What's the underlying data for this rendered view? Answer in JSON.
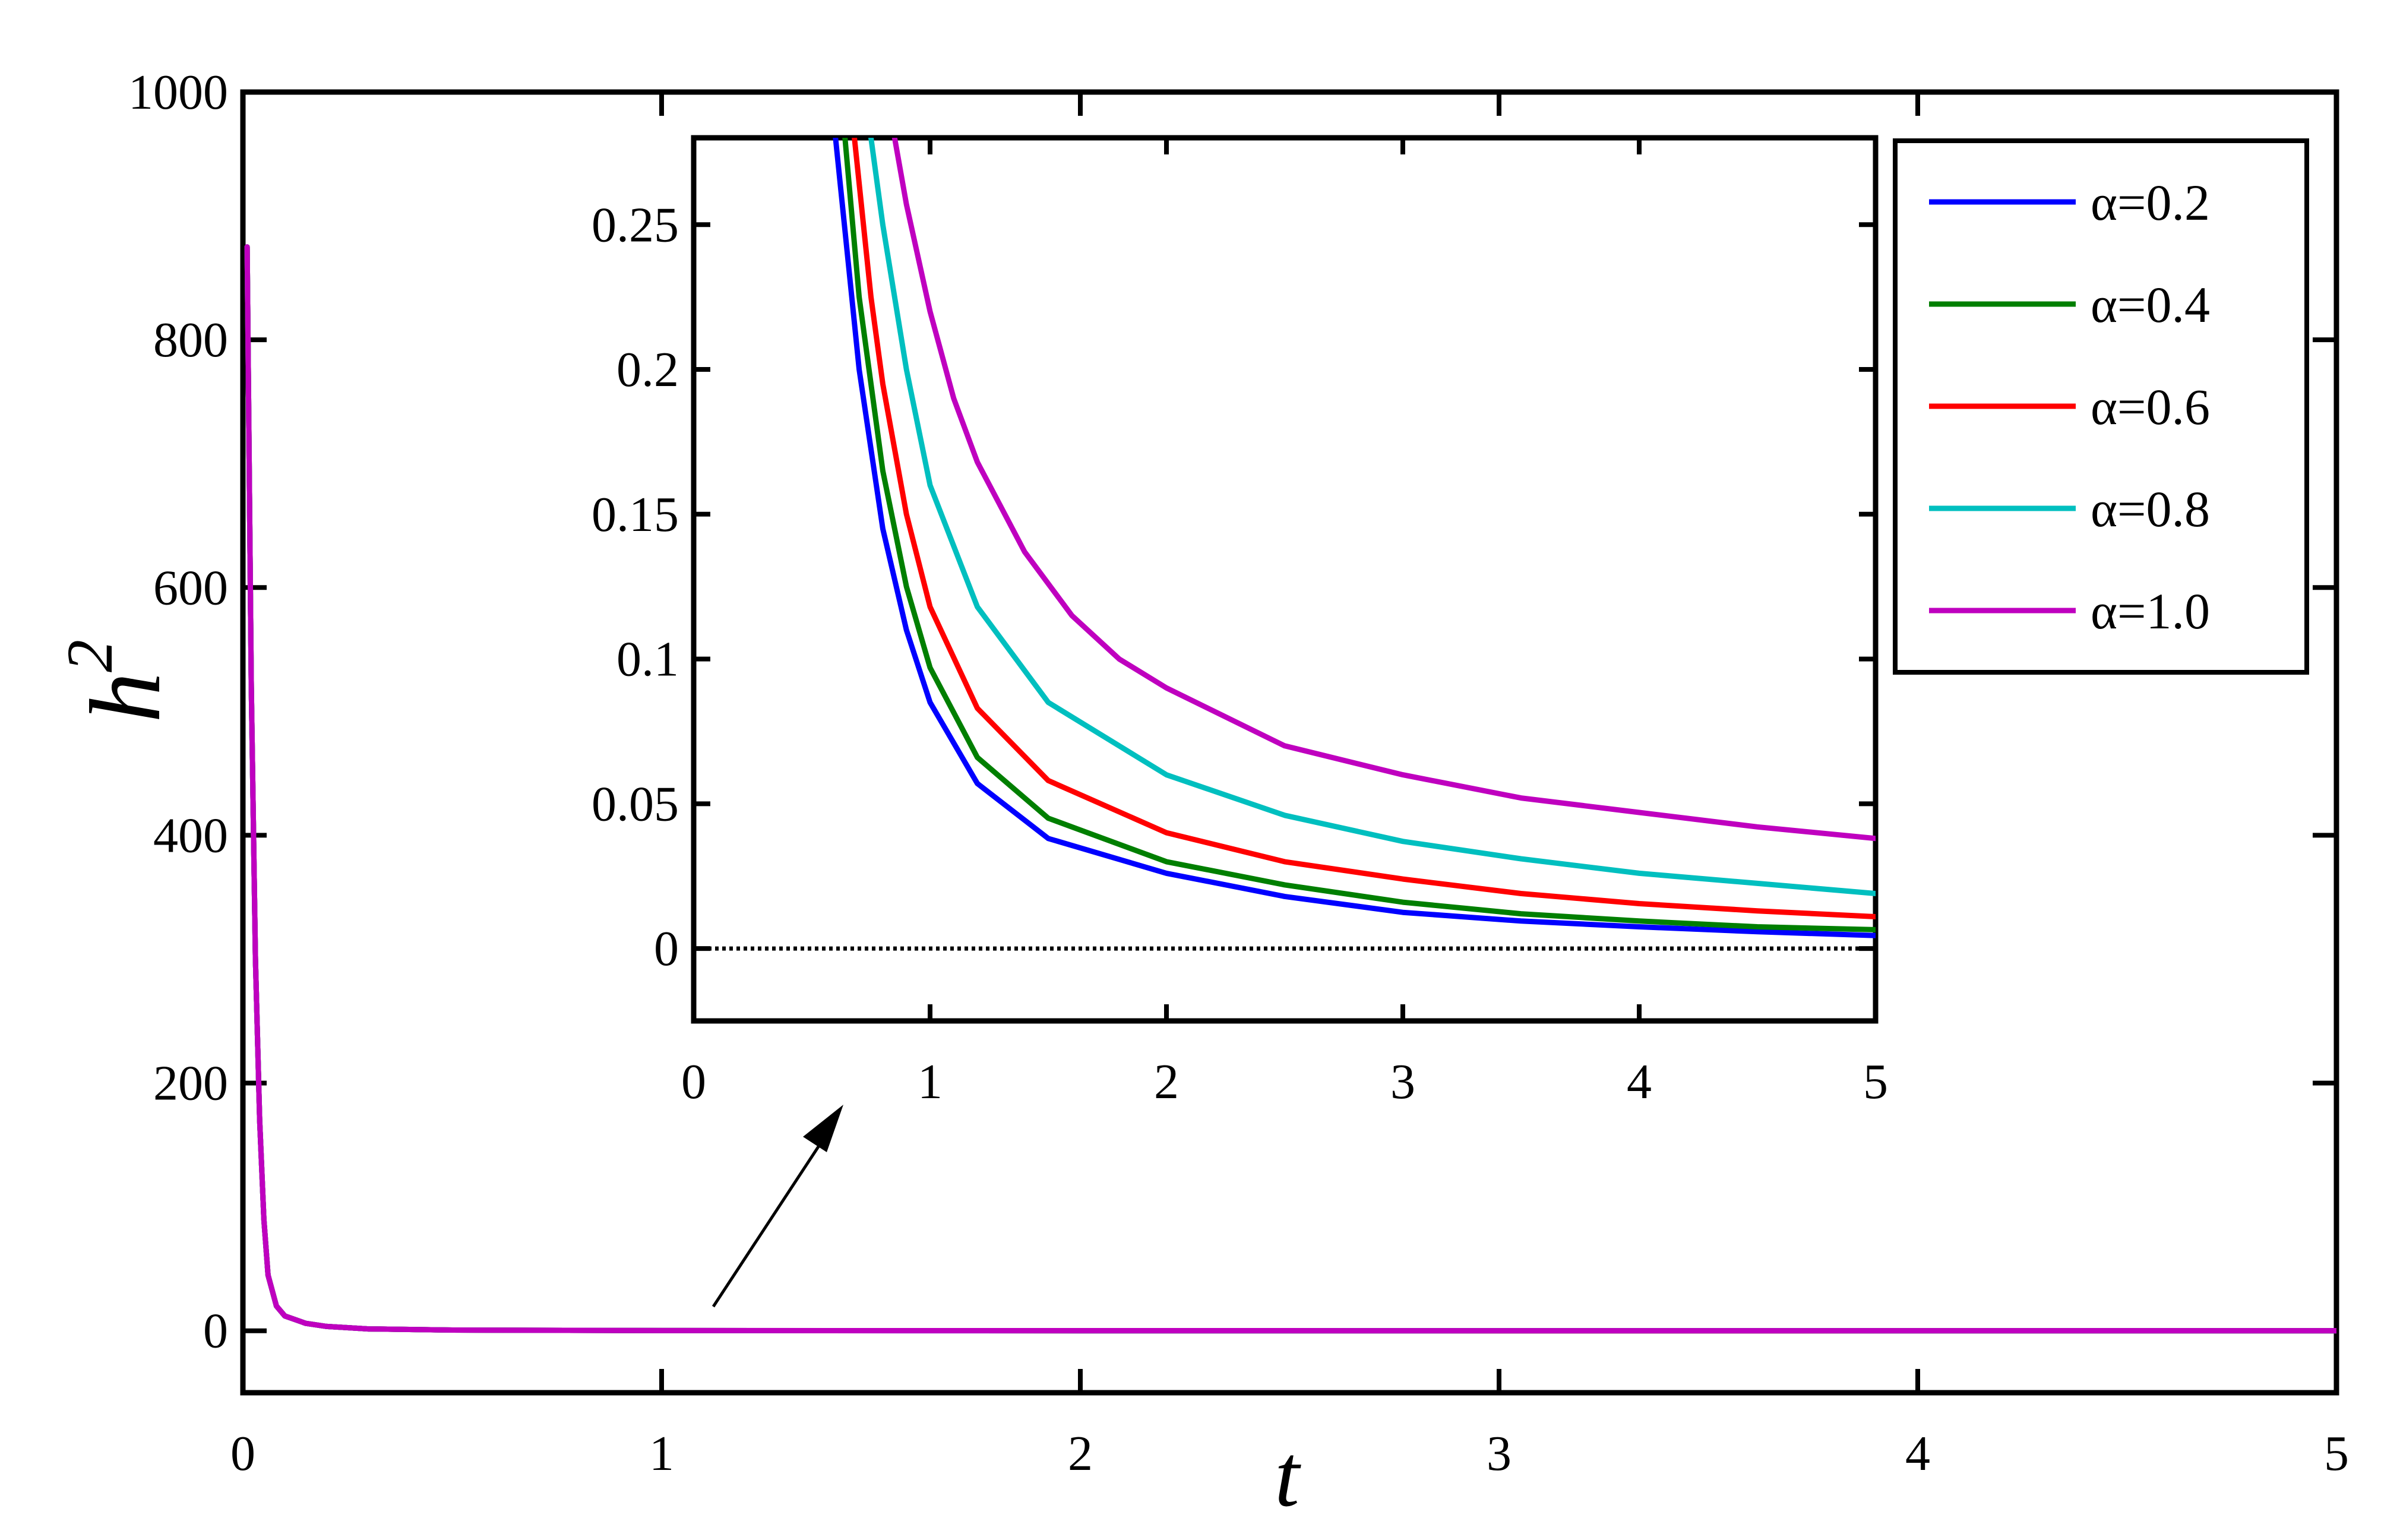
{
  "chart_data": [
    {
      "id": "main",
      "type": "line",
      "xlabel": "t",
      "ylabel": "h",
      "ylabel_superscript": "2",
      "xlim": [
        0,
        5
      ],
      "ylim": [
        -50,
        1000
      ],
      "xticks": [
        "0",
        "1",
        "2",
        "3",
        "4",
        "5"
      ],
      "yticks": [
        "0",
        "200",
        "400",
        "600",
        "800",
        "1000"
      ],
      "grid": false,
      "series": [
        {
          "name": "α=0.2",
          "color": "#0000ff",
          "x": [
            0.01,
            0.02,
            0.03,
            0.04,
            0.05,
            0.06,
            0.08,
            0.1,
            0.15,
            0.2,
            0.3,
            0.5,
            1,
            2,
            3,
            4,
            5
          ],
          "y": [
            875,
            520,
            300,
            170,
            90,
            45,
            20,
            12,
            6,
            3.5,
            1.5,
            0.6,
            0.15,
            0.03,
            0.012,
            0.008,
            0.005
          ]
        },
        {
          "name": "α=0.4",
          "color": "#007f00",
          "x": [
            0.01,
            0.02,
            0.03,
            0.04,
            0.05,
            0.06,
            0.08,
            0.1,
            0.15,
            0.2,
            0.3,
            0.5,
            1,
            2,
            3,
            4,
            5
          ],
          "y": [
            875,
            520,
            300,
            170,
            90,
            45,
            20,
            12,
            6,
            3.5,
            1.5,
            0.6,
            0.15,
            0.035,
            0.015,
            0.01,
            0.008
          ]
        },
        {
          "name": "α=0.6",
          "color": "#ff0000",
          "x": [
            0.01,
            0.02,
            0.03,
            0.04,
            0.05,
            0.06,
            0.08,
            0.1,
            0.15,
            0.2,
            0.3,
            0.5,
            1,
            2,
            3,
            4,
            5
          ],
          "y": [
            875,
            520,
            300,
            170,
            90,
            45,
            20,
            12,
            6,
            3.5,
            1.5,
            0.6,
            0.15,
            0.045,
            0.02,
            0.014,
            0.011
          ]
        },
        {
          "name": "α=0.8",
          "color": "#00bfbf",
          "x": [
            0.01,
            0.02,
            0.03,
            0.04,
            0.05,
            0.06,
            0.08,
            0.1,
            0.15,
            0.2,
            0.3,
            0.5,
            1,
            2,
            3,
            4,
            5
          ],
          "y": [
            875,
            520,
            300,
            170,
            90,
            45,
            20,
            12,
            6,
            3.5,
            1.5,
            0.6,
            0.15,
            0.06,
            0.032,
            0.024,
            0.02
          ]
        },
        {
          "name": "α=1.0",
          "color": "#bf00bf",
          "x": [
            0.01,
            0.02,
            0.03,
            0.04,
            0.05,
            0.06,
            0.08,
            0.1,
            0.15,
            0.2,
            0.3,
            0.5,
            1,
            2,
            3,
            4,
            5
          ],
          "y": [
            875,
            520,
            300,
            170,
            90,
            45,
            20,
            12,
            6,
            3.5,
            1.5,
            0.6,
            0.15,
            0.09,
            0.055,
            0.045,
            0.038
          ]
        }
      ],
      "legend": {
        "placement": "top-right"
      }
    },
    {
      "id": "inset",
      "type": "line",
      "xlim": [
        0,
        5
      ],
      "ylim": [
        -0.025,
        0.28
      ],
      "xticks": [
        "0",
        "1",
        "2",
        "3",
        "4",
        "5"
      ],
      "yticks": [
        "0",
        "0.05",
        "0.1",
        "0.15",
        "0.2",
        "0.25"
      ],
      "reference_line": {
        "y": 0,
        "style": "dotted",
        "color": "#000000"
      },
      "series": [
        {
          "name": "α=0.2",
          "color": "#0000ff",
          "x": [
            0.6,
            0.7,
            0.8,
            0.9,
            1.0,
            1.2,
            1.5,
            2,
            2.5,
            3,
            3.5,
            4,
            4.5,
            5
          ],
          "y": [
            0.28,
            0.2,
            0.145,
            0.11,
            0.085,
            0.057,
            0.038,
            0.026,
            0.018,
            0.0125,
            0.0095,
            0.0075,
            0.0058,
            0.0045
          ]
        },
        {
          "name": "α=0.4",
          "color": "#007f00",
          "x": [
            0.64,
            0.7,
            0.8,
            0.9,
            1.0,
            1.2,
            1.5,
            2,
            2.5,
            3,
            3.5,
            4,
            4.5,
            5
          ],
          "y": [
            0.28,
            0.225,
            0.165,
            0.125,
            0.097,
            0.066,
            0.045,
            0.03,
            0.022,
            0.016,
            0.012,
            0.0095,
            0.0075,
            0.0065
          ]
        },
        {
          "name": "α=0.6",
          "color": "#ff0000",
          "x": [
            0.68,
            0.75,
            0.8,
            0.9,
            1.0,
            1.2,
            1.5,
            2,
            2.5,
            3,
            3.5,
            4,
            4.5,
            5
          ],
          "y": [
            0.28,
            0.225,
            0.195,
            0.15,
            0.118,
            0.083,
            0.058,
            0.04,
            0.03,
            0.024,
            0.019,
            0.0155,
            0.013,
            0.011
          ]
        },
        {
          "name": "α=0.8",
          "color": "#00bfbf",
          "x": [
            0.75,
            0.8,
            0.9,
            1.0,
            1.2,
            1.5,
            2,
            2.5,
            3,
            3.5,
            4,
            4.5,
            5
          ],
          "y": [
            0.28,
            0.25,
            0.2,
            0.16,
            0.118,
            0.085,
            0.06,
            0.046,
            0.037,
            0.031,
            0.026,
            0.0225,
            0.019
          ]
        },
        {
          "name": "α=1.0",
          "color": "#bf00bf",
          "x": [
            0.85,
            0.9,
            1.0,
            1.1,
            1.2,
            1.4,
            1.6,
            1.8,
            2,
            2.5,
            3,
            3.5,
            4,
            4.5,
            5
          ],
          "y": [
            0.28,
            0.257,
            0.22,
            0.19,
            0.168,
            0.137,
            0.115,
            0.1,
            0.09,
            0.07,
            0.06,
            0.052,
            0.047,
            0.042,
            0.038
          ]
        }
      ]
    }
  ]
}
